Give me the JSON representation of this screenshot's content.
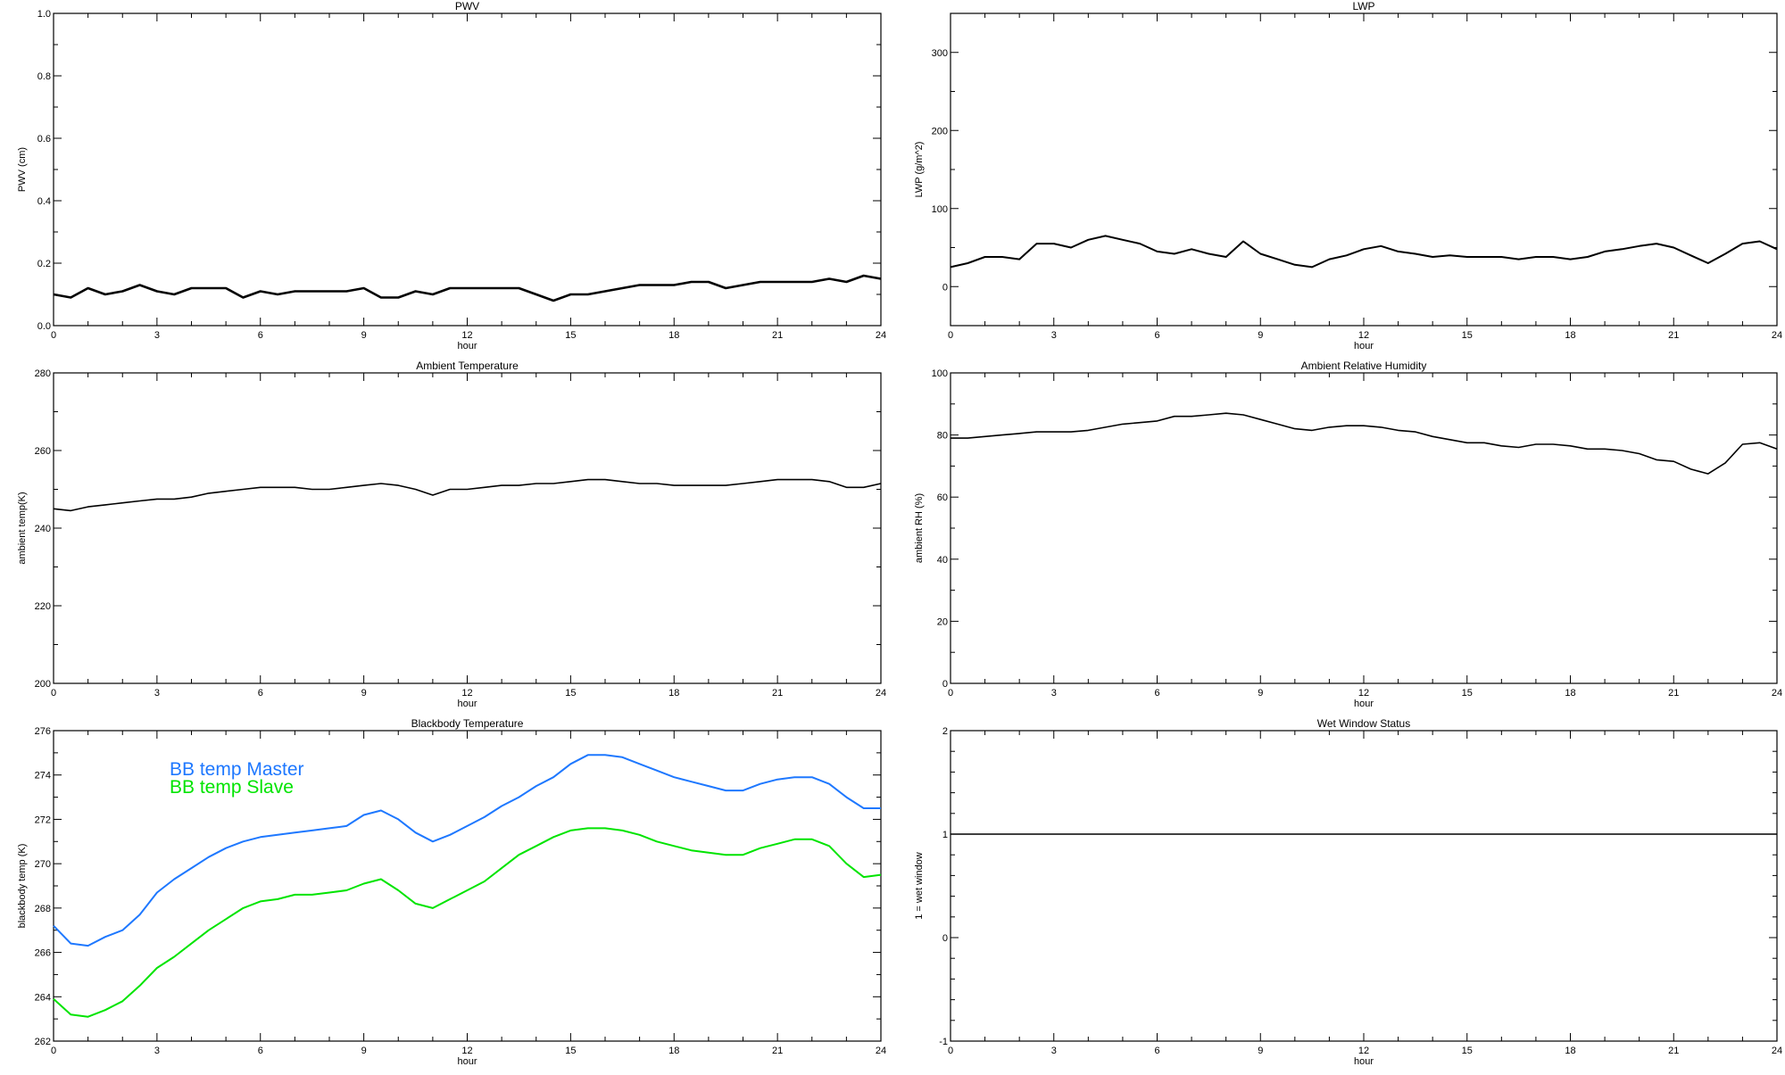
{
  "chart_data": [
    {
      "type": "line",
      "title": "PWV",
      "xlabel": "hour",
      "ylabel": "PWV (cm)",
      "xlim": [
        0,
        24
      ],
      "ylim": [
        0.0,
        1.0
      ],
      "xticks": [
        "0",
        "3",
        "6",
        "9",
        "12",
        "15",
        "18",
        "21",
        "24"
      ],
      "yticks": [
        "0.0",
        "0.2",
        "0.4",
        "0.6",
        "0.8",
        "1.0"
      ],
      "x_minor_step": 1,
      "y_minor_step": 0.1,
      "x_step": 0.5,
      "series": [
        {
          "color": "#000000",
          "values": [
            0.1,
            0.09,
            0.12,
            0.1,
            0.11,
            0.13,
            0.11,
            0.1,
            0.12,
            0.12,
            0.12,
            0.09,
            0.11,
            0.1,
            0.11,
            0.11,
            0.11,
            0.11,
            0.12,
            0.09,
            0.09,
            0.11,
            0.1,
            0.12,
            0.12,
            0.12,
            0.12,
            0.12,
            0.1,
            0.08,
            0.1,
            0.1,
            0.11,
            0.12,
            0.13,
            0.13,
            0.13,
            0.14,
            0.14,
            0.12,
            0.13,
            0.14,
            0.14,
            0.14,
            0.14,
            0.15,
            0.14,
            0.16,
            0.15
          ]
        }
      ]
    },
    {
      "type": "line",
      "title": "LWP",
      "xlabel": "hour",
      "ylabel": "LWP (g/m^2)",
      "xlim": [
        0,
        24
      ],
      "ylim": [
        -50,
        350
      ],
      "xticks": [
        "0",
        "3",
        "6",
        "9",
        "12",
        "15",
        "18",
        "21",
        "24"
      ],
      "yticks": [
        "0",
        "100",
        "200",
        "300"
      ],
      "x_minor_step": 1,
      "y_minor_step": 50,
      "x_step": 0.5,
      "series": [
        {
          "color": "#000000",
          "values": [
            25,
            30,
            38,
            38,
            35,
            55,
            55,
            50,
            60,
            65,
            60,
            55,
            45,
            42,
            48,
            42,
            38,
            58,
            42,
            35,
            28,
            25,
            35,
            40,
            48,
            52,
            45,
            42,
            38,
            40,
            38,
            38,
            38,
            35,
            38,
            38,
            35,
            38,
            45,
            48,
            52,
            55,
            50,
            40,
            30,
            42,
            55,
            58,
            48
          ]
        }
      ]
    },
    {
      "type": "line",
      "title": "Ambient Temperature",
      "xlabel": "hour",
      "ylabel": "ambient temp(K)",
      "xlim": [
        0,
        24
      ],
      "ylim": [
        200,
        280
      ],
      "xticks": [
        "0",
        "3",
        "6",
        "9",
        "12",
        "15",
        "18",
        "21",
        "24"
      ],
      "yticks": [
        "200",
        "220",
        "240",
        "260",
        "280"
      ],
      "x_minor_step": 1,
      "y_minor_step": 10,
      "x_step": 0.5,
      "series": [
        {
          "color": "#000000",
          "values": [
            245,
            244.5,
            245.5,
            246,
            246.5,
            247,
            247.5,
            247.5,
            248,
            249,
            249.5,
            250,
            250.5,
            250.5,
            250.5,
            250,
            250,
            250.5,
            251,
            251.5,
            251,
            250,
            248.5,
            250,
            250,
            250.5,
            251,
            251,
            251.5,
            251.5,
            252,
            252.5,
            252.5,
            252,
            251.5,
            251.5,
            251,
            251,
            251,
            251,
            251.5,
            252,
            252.5,
            252.5,
            252.5,
            252,
            250.5,
            250.5,
            251.5
          ]
        }
      ]
    },
    {
      "type": "line",
      "title": "Ambient Relative Humidity",
      "xlabel": "hour",
      "ylabel": "ambient RH (%)",
      "xlim": [
        0,
        24
      ],
      "ylim": [
        0,
        100
      ],
      "xticks": [
        "0",
        "3",
        "6",
        "9",
        "12",
        "15",
        "18",
        "21",
        "24"
      ],
      "yticks": [
        "0",
        "20",
        "40",
        "60",
        "80",
        "100"
      ],
      "x_minor_step": 1,
      "y_minor_step": 10,
      "x_step": 0.5,
      "series": [
        {
          "color": "#000000",
          "values": [
            79,
            79,
            79.5,
            80,
            80.5,
            81,
            81,
            81,
            81.5,
            82.5,
            83.5,
            84,
            84.5,
            86,
            86,
            86.5,
            87,
            86.5,
            85,
            83.5,
            82,
            81.5,
            82.5,
            83,
            83,
            82.5,
            81.5,
            81,
            79.5,
            78.5,
            77.5,
            77.5,
            76.5,
            76,
            77,
            77,
            76.5,
            75.5,
            75.5,
            75,
            74,
            72,
            71.5,
            69,
            67.5,
            71,
            77,
            77.5,
            75.5
          ]
        }
      ]
    },
    {
      "type": "line",
      "title": "Blackbody Temperature",
      "xlabel": "hour",
      "ylabel": "blackbody temp (K)",
      "xlim": [
        0,
        24
      ],
      "ylim": [
        262,
        276
      ],
      "xticks": [
        "0",
        "3",
        "6",
        "9",
        "12",
        "15",
        "18",
        "21",
        "24"
      ],
      "yticks": [
        "262",
        "264",
        "266",
        "268",
        "270",
        "272",
        "274",
        "276"
      ],
      "x_minor_step": 1,
      "y_minor_step": 1,
      "x_step": 0.5,
      "legend": "top-left",
      "series": [
        {
          "name": "BB temp Master",
          "color": "#1e78ff",
          "values": [
            267.2,
            266.4,
            266.3,
            266.7,
            267.0,
            267.7,
            268.7,
            269.3,
            269.8,
            270.3,
            270.7,
            271.0,
            271.2,
            271.3,
            271.4,
            271.5,
            271.6,
            271.7,
            272.2,
            272.4,
            272.0,
            271.4,
            271.0,
            271.3,
            271.7,
            272.1,
            272.6,
            273.0,
            273.5,
            273.9,
            274.5,
            274.9,
            274.9,
            274.8,
            274.5,
            274.2,
            273.9,
            273.7,
            273.5,
            273.3,
            273.3,
            273.6,
            273.8,
            273.9,
            273.9,
            273.6,
            273.0,
            272.5,
            272.5
          ]
        },
        {
          "name": "BB temp Slave",
          "color": "#00e400",
          "values": [
            263.9,
            263.2,
            263.1,
            263.4,
            263.8,
            264.5,
            265.3,
            265.8,
            266.4,
            267.0,
            267.5,
            268.0,
            268.3,
            268.4,
            268.6,
            268.6,
            268.7,
            268.8,
            269.1,
            269.3,
            268.8,
            268.2,
            268.0,
            268.4,
            268.8,
            269.2,
            269.8,
            270.4,
            270.8,
            271.2,
            271.5,
            271.6,
            271.6,
            271.5,
            271.3,
            271.0,
            270.8,
            270.6,
            270.5,
            270.4,
            270.4,
            270.7,
            270.9,
            271.1,
            271.1,
            270.8,
            270.0,
            269.4,
            269.5
          ]
        }
      ]
    },
    {
      "type": "line",
      "title": "Wet Window Status",
      "xlabel": "hour",
      "ylabel": "1 = wet window",
      "xlim": [
        0,
        24
      ],
      "ylim": [
        -1,
        2
      ],
      "xticks": [
        "0",
        "3",
        "6",
        "9",
        "12",
        "15",
        "18",
        "21",
        "24"
      ],
      "yticks": [
        "-1",
        "0",
        "1",
        "2"
      ],
      "x_minor_step": 1,
      "y_minor_step": 0.2,
      "x_step": 24,
      "series": [
        {
          "color": "#000000",
          "values": [
            1,
            1
          ]
        }
      ]
    }
  ]
}
